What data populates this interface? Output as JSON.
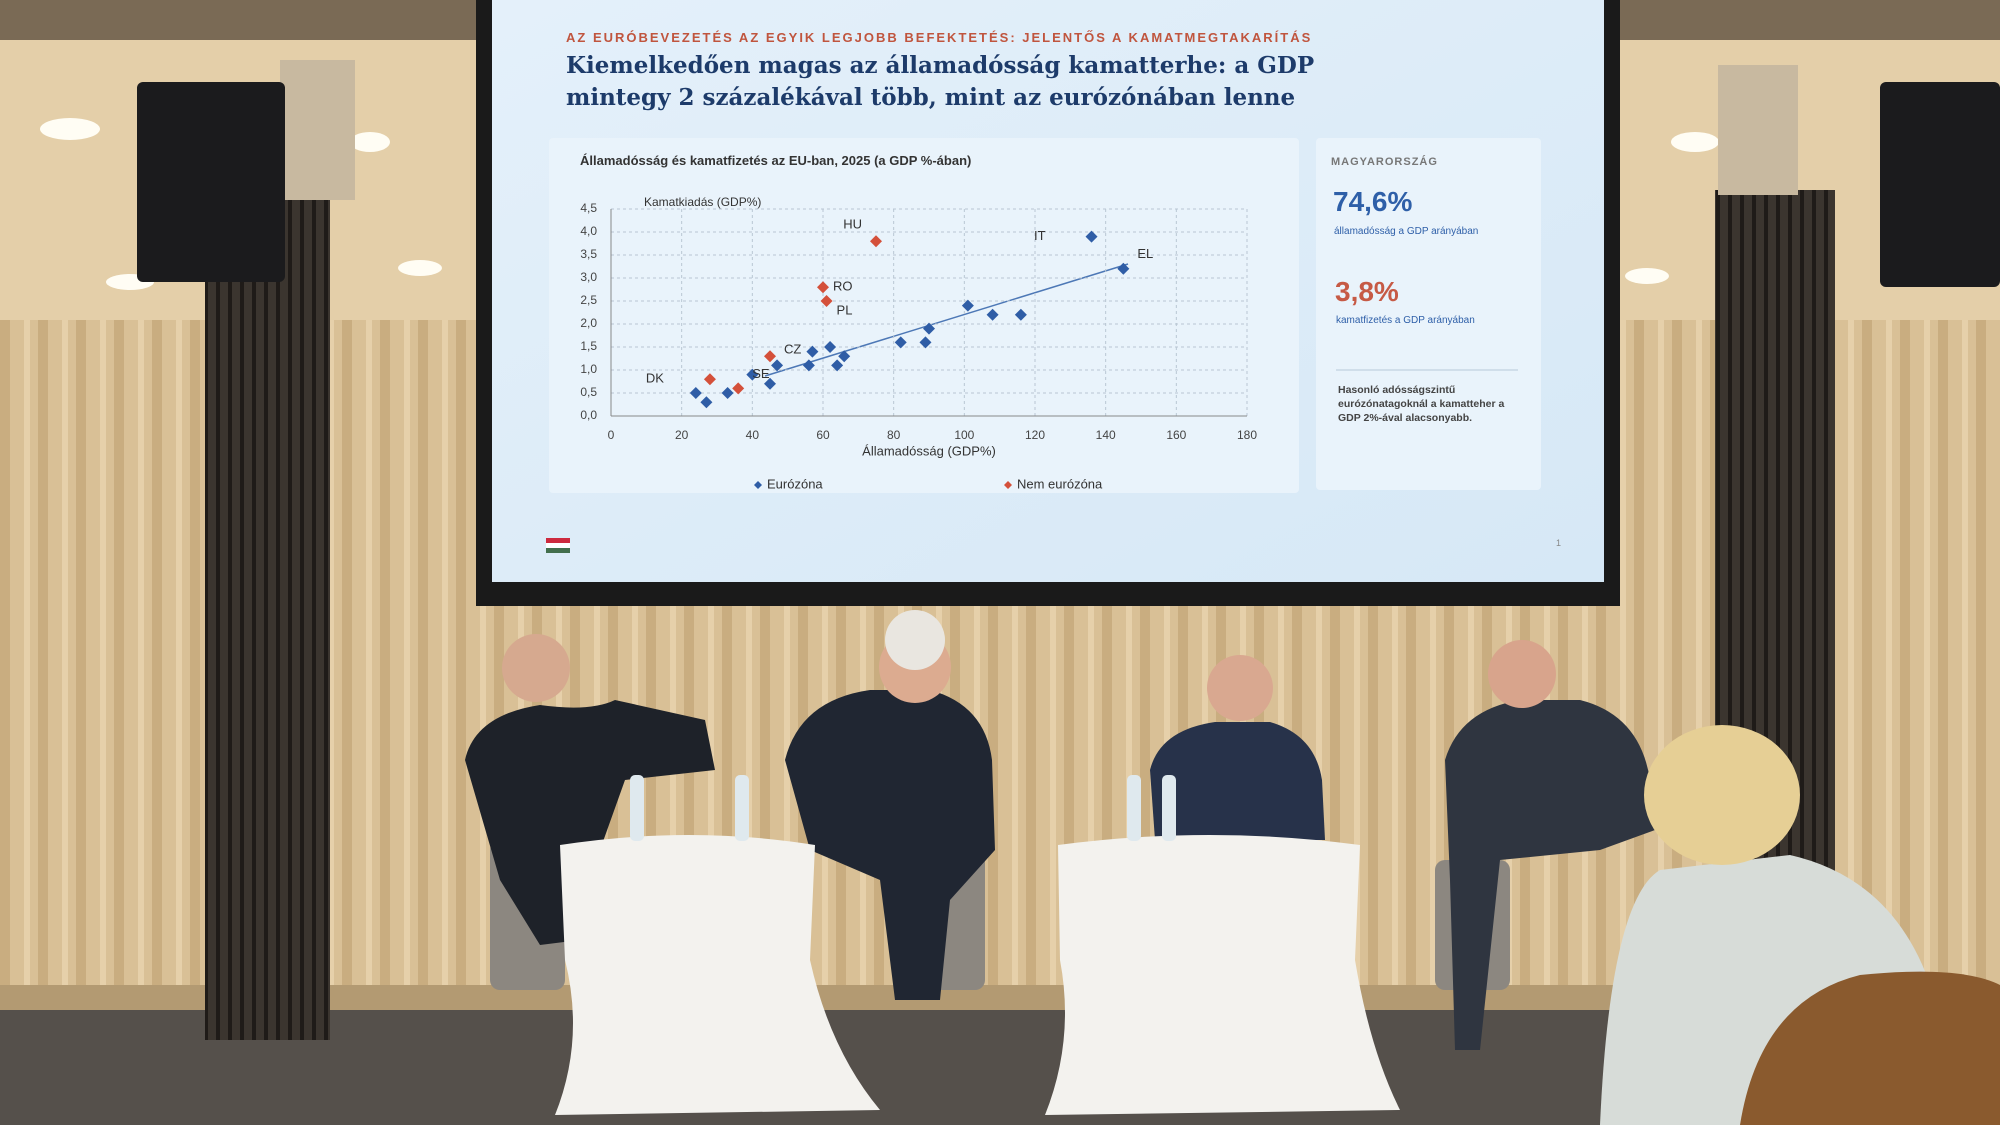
{
  "slide": {
    "kicker": "AZ EURÓBEVEZETÉS AZ EGYIK LEGJOBB BEFEKTETÉS: JELENTŐS A KAMATMEGTAKARÍTÁS",
    "title": "Kiemelkedően magas az államadósság kamatterhe: a GDP mintegy 2 százalékával több, mint az eurózónában lenne",
    "page_number": "1"
  },
  "side_panel": {
    "heading": "MAGYARORSZÁG",
    "stat1": "74,6%",
    "stat1_caption": "államadósság a GDP arányában",
    "stat2": "3,8%",
    "stat2_caption": "kamatfizetés a GDP arányában",
    "note": "Hasonló adósságszintű eurózónatagoknál a kamatteher a GDP 2%-ával alacsonyabb."
  },
  "chart_data": {
    "type": "scatter",
    "title": "Államadósság és kamatfizetés az EU-ban, 2025 (a GDP %-ában)",
    "x_label": "Államadósság (GDP%)",
    "y_label": "Kamatkiadás (GDP%)",
    "xlim": [
      0,
      180
    ],
    "xticks": [
      0,
      20,
      40,
      60,
      80,
      100,
      120,
      140,
      160,
      180
    ],
    "ylim": [
      0,
      4.5
    ],
    "yticks": [
      {
        "value": 0,
        "label": "0,0"
      },
      {
        "value": 0.5,
        "label": "0,5"
      },
      {
        "value": 1,
        "label": "1,0"
      },
      {
        "value": 1.5,
        "label": "1,5"
      },
      {
        "value": 2,
        "label": "2,0"
      },
      {
        "value": 2.5,
        "label": "2,5"
      },
      {
        "value": 3,
        "label": "3,0"
      },
      {
        "value": 3.5,
        "label": "3,5"
      },
      {
        "value": 4,
        "label": "4,0"
      },
      {
        "value": 4.5,
        "label": "4,5"
      }
    ],
    "grid": true,
    "legend": "bottom",
    "series": [
      {
        "name": "Eurózóna",
        "color": "#2f5da6",
        "x": [
          24,
          27,
          33,
          40,
          45,
          47,
          56,
          57,
          62,
          64,
          66,
          82,
          89,
          90,
          101,
          108,
          116,
          136,
          145
        ],
        "values": [
          0.5,
          0.3,
          0.5,
          0.9,
          0.7,
          1.1,
          1.1,
          1.4,
          1.5,
          1.1,
          1.3,
          1.6,
          1.6,
          1.9,
          2.4,
          2.2,
          2.2,
          3.9,
          3.2
        ],
        "point_labels": [
          null,
          null,
          null,
          null,
          null,
          null,
          null,
          null,
          null,
          null,
          null,
          null,
          null,
          null,
          null,
          null,
          null,
          "IT",
          "EL"
        ]
      },
      {
        "name": "Nem eurózóna",
        "color": "#d4503a",
        "x": [
          28,
          36,
          45,
          61,
          60,
          75
        ],
        "values": [
          0.8,
          0.6,
          1.3,
          2.5,
          2.8,
          3.8
        ],
        "point_labels": [
          "DK",
          "SE",
          "CZ",
          "PL",
          "RO",
          "HU"
        ]
      }
    ]
  }
}
